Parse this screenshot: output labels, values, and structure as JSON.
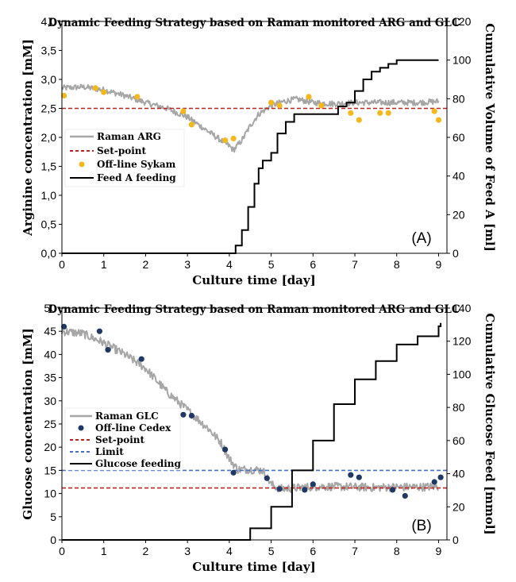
{
  "chart_data": [
    {
      "panel": "A",
      "type": "line",
      "title": "Dynamic Feeding Strategy based on Raman monitored ARG and GLC",
      "panel_label": "(A)",
      "xlabel": "Culture time [day]",
      "ylabel_left": "Arginine concentration [mM]",
      "ylabel_right": "Cumulative Volume of Feed A [ml]",
      "xlim": [
        0,
        9.2
      ],
      "xticks": [
        "0",
        "1",
        "2",
        "3",
        "4",
        "5",
        "6",
        "7",
        "8",
        "9"
      ],
      "ylim_left": [
        0,
        4
      ],
      "yticks_left": [
        "0,0",
        "0,5",
        "1,0",
        "1,5",
        "2,0",
        "2,5",
        "3,0",
        "3,5",
        "4,0"
      ],
      "ylim_right": [
        0,
        120
      ],
      "yticks_right": [
        "0",
        "20",
        "40",
        "60",
        "80",
        "100",
        "120"
      ],
      "legend_position": "center-left",
      "grid": false,
      "colors": {
        "raman": "#a6a6a6",
        "setpoint": "#c0211f",
        "offline": "#f2b81c",
        "feed": "#000000"
      },
      "series": [
        {
          "name": "Raman ARG",
          "style": "noisy-line",
          "axis": "left",
          "noise": 0.05,
          "x": [
            0,
            0.5,
            1.0,
            1.5,
            2.0,
            2.5,
            3.0,
            3.5,
            3.8,
            4.0,
            4.1,
            4.3,
            4.5,
            4.7,
            5.0,
            5.3,
            5.6,
            6.0,
            6.5,
            7.0,
            7.5,
            8.0,
            8.5,
            9.0
          ],
          "y": [
            2.85,
            2.87,
            2.82,
            2.72,
            2.6,
            2.5,
            2.35,
            2.1,
            1.95,
            1.85,
            1.78,
            1.95,
            2.2,
            2.4,
            2.55,
            2.62,
            2.66,
            2.6,
            2.58,
            2.6,
            2.6,
            2.6,
            2.6,
            2.62
          ]
        },
        {
          "name": "Set-point",
          "style": "dashed",
          "axis": "left",
          "x": [
            0,
            9.2
          ],
          "y": [
            2.5,
            2.5
          ]
        },
        {
          "name": "Off-line Sykam",
          "style": "markers",
          "axis": "left",
          "x": [
            0.05,
            0.8,
            1.0,
            1.8,
            2.9,
            3.1,
            3.9,
            4.1,
            5.0,
            5.2,
            5.9,
            6.2,
            6.9,
            7.1,
            7.6,
            7.8,
            8.9,
            9.0
          ],
          "y": [
            2.72,
            2.85,
            2.78,
            2.7,
            2.45,
            2.22,
            1.95,
            1.98,
            2.6,
            2.55,
            2.7,
            2.55,
            2.42,
            2.3,
            2.42,
            2.42,
            2.45,
            2.3
          ]
        },
        {
          "name": "Feed A feeding",
          "style": "step",
          "axis": "right",
          "x": [
            0,
            4.1,
            4.15,
            4.3,
            4.45,
            4.6,
            4.7,
            4.8,
            5.0,
            5.15,
            5.35,
            5.55,
            6.0,
            6.5,
            6.6,
            6.8,
            7.0,
            7.2,
            7.4,
            7.6,
            7.8,
            8.0,
            8.5,
            9.0
          ],
          "y": [
            0,
            0,
            4,
            12,
            24,
            36,
            44,
            48,
            52,
            62,
            68,
            72,
            72,
            72,
            76,
            78,
            84,
            90,
            94,
            96,
            98,
            100,
            100,
            100
          ]
        }
      ]
    },
    {
      "panel": "B",
      "type": "line",
      "title": "Dynamic Feeding Strategy based on Raman monitored ARG and GLC",
      "panel_label": "(B)",
      "xlabel": "Culture time [day]",
      "ylabel_left": "Glucose concentration [mM]",
      "ylabel_right": "Cumulative Glucose Feed [mmol]",
      "xlim": [
        0,
        9.2
      ],
      "xticks": [
        "0",
        "1",
        "2",
        "3",
        "4",
        "5",
        "6",
        "7",
        "8",
        "9"
      ],
      "ylim_left": [
        0,
        50
      ],
      "yticks_left": [
        "0",
        "5",
        "10",
        "15",
        "20",
        "25",
        "30",
        "35",
        "40",
        "45",
        "50"
      ],
      "ylim_right": [
        0,
        140
      ],
      "yticks_right": [
        "0",
        "20",
        "40",
        "60",
        "80",
        "100",
        "120",
        "140"
      ],
      "legend_position": "center-left",
      "grid": false,
      "colors": {
        "raman": "#a6a6a6",
        "offline": "#1f3864",
        "setpoint": "#c0211f",
        "limit": "#4472c4",
        "feed": "#000000"
      },
      "series": [
        {
          "name": "Raman GLC",
          "style": "noisy-line",
          "axis": "left",
          "noise": 0.9,
          "x": [
            0,
            0.5,
            1.0,
            1.5,
            2.0,
            2.5,
            3.0,
            3.5,
            3.8,
            4.0,
            4.2,
            4.5,
            4.8,
            5.0,
            5.2,
            5.6,
            6.0,
            6.5,
            7.0,
            7.5,
            8.0,
            8.5,
            9.0
          ],
          "y": [
            45,
            44.5,
            42.5,
            40,
            37,
            32,
            28,
            24,
            21,
            17.5,
            15.2,
            15.2,
            15,
            12,
            11,
            11.2,
            11.5,
            11.5,
            11.4,
            11.3,
            11.4,
            11.4,
            11.5
          ]
        },
        {
          "name": "Off-line Cedex",
          "style": "markers",
          "axis": "left",
          "x": [
            0.05,
            0.9,
            1.1,
            1.9,
            2.9,
            3.1,
            3.9,
            4.1,
            4.9,
            5.2,
            5.8,
            6.0,
            6.9,
            7.1,
            7.9,
            8.2,
            8.9,
            9.05
          ],
          "y": [
            46,
            45,
            41,
            39,
            27,
            26.8,
            19.5,
            14.5,
            13.3,
            11,
            10.8,
            12,
            14,
            13.5,
            10.8,
            9.5,
            12.5,
            13.5
          ]
        },
        {
          "name": "Set-point",
          "style": "dashed",
          "axis": "left",
          "x": [
            0,
            9.2
          ],
          "y": [
            11.2,
            11.2
          ]
        },
        {
          "name": "Limit",
          "style": "dashed",
          "axis": "left",
          "x": [
            0,
            9.2
          ],
          "y": [
            15,
            15
          ]
        },
        {
          "name": "Glucose feeding",
          "style": "step",
          "axis": "right",
          "x": [
            0,
            4.1,
            4.5,
            5.0,
            5.5,
            6.0,
            6.5,
            7.0,
            7.5,
            8.0,
            8.5,
            9.0,
            9.05
          ],
          "y": [
            0,
            0,
            7,
            20,
            42,
            60,
            82,
            97,
            108,
            118,
            123,
            129,
            131
          ]
        }
      ],
      "legend_order": [
        "Raman GLC",
        "Off-line Cedex",
        "Set-point",
        "Limit",
        "Glucose feeding"
      ]
    }
  ]
}
